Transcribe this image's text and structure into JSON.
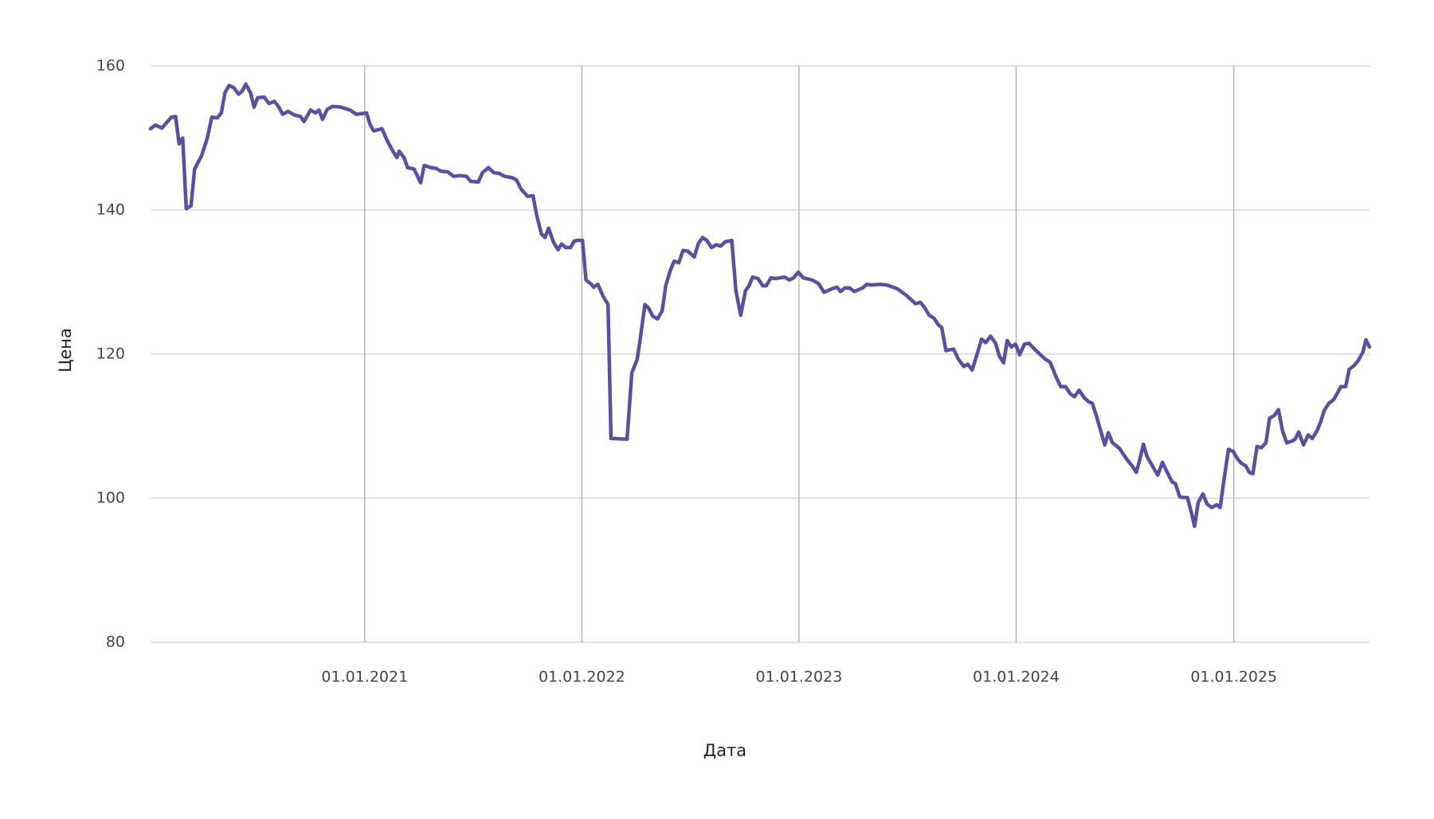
{
  "chart_data": {
    "type": "line",
    "x_label": "Дата",
    "y_label": "Цена",
    "color": "#5e4ea0",
    "xlim": [
      "2020-01-07",
      "2025-08-17"
    ],
    "xticks": [
      {
        "value": "2021-01-01",
        "label": "01.01.2021"
      },
      {
        "value": "2022-01-01",
        "label": "01.01.2022"
      },
      {
        "value": "2023-01-01",
        "label": "01.01.2023"
      },
      {
        "value": "2024-01-01",
        "label": "01.01.2024"
      },
      {
        "value": "2025-01-01",
        "label": "01.01.2025"
      }
    ],
    "ylim": [
      80,
      160
    ],
    "yticks": [
      80,
      100,
      120,
      140,
      160
    ],
    "grid": true,
    "x": [
      "2020-01-07",
      "2020-01-15",
      "2020-01-26",
      "2020-02-11",
      "2020-02-18",
      "2020-02-24",
      "2020-03-01",
      "2020-03-07",
      "2020-03-15",
      "2020-03-21",
      "2020-04-02",
      "2020-04-11",
      "2020-04-19",
      "2020-04-28",
      "2020-05-05",
      "2020-05-11",
      "2020-05-18",
      "2020-05-26",
      "2020-06-03",
      "2020-06-09",
      "2020-06-15",
      "2020-06-23",
      "2020-06-29",
      "2020-07-05",
      "2020-07-16",
      "2020-07-24",
      "2020-08-02",
      "2020-08-09",
      "2020-08-16",
      "2020-08-25",
      "2020-09-05",
      "2020-09-15",
      "2020-09-21",
      "2020-10-02",
      "2020-10-10",
      "2020-10-16",
      "2020-10-22",
      "2020-10-30",
      "2020-11-08",
      "2020-11-22",
      "2020-12-07",
      "2020-12-18",
      "2020-12-27",
      "2021-01-04",
      "2021-01-10",
      "2021-01-16",
      "2021-01-30",
      "2021-02-08",
      "2021-02-18",
      "2021-02-24",
      "2021-02-28",
      "2021-03-08",
      "2021-03-14",
      "2021-03-25",
      "2021-04-05",
      "2021-04-11",
      "2021-04-22",
      "2021-05-01",
      "2021-05-09",
      "2021-05-21",
      "2021-05-30",
      "2021-06-10",
      "2021-06-21",
      "2021-06-28",
      "2021-07-11",
      "2021-07-18",
      "2021-07-28",
      "2021-08-06",
      "2021-08-15",
      "2021-08-24",
      "2021-09-06",
      "2021-09-13",
      "2021-09-21",
      "2021-10-02",
      "2021-10-11",
      "2021-10-17",
      "2021-10-25",
      "2021-10-31",
      "2021-11-06",
      "2021-11-14",
      "2021-11-22",
      "2021-11-28",
      "2021-12-05",
      "2021-12-13",
      "2021-12-19",
      "2021-12-24",
      "2022-01-02",
      "2022-01-08",
      "2022-01-17",
      "2022-01-21",
      "2022-01-28",
      "2022-02-06",
      "2022-02-14",
      "2022-02-19",
      "2022-03-18",
      "2022-03-26",
      "2022-04-04",
      "2022-04-09",
      "2022-04-17",
      "2022-04-24",
      "2022-04-30",
      "2022-05-08",
      "2022-05-16",
      "2022-05-22",
      "2022-05-30",
      "2022-06-05",
      "2022-06-13",
      "2022-06-20",
      "2022-06-28",
      "2022-07-09",
      "2022-07-16",
      "2022-07-23",
      "2022-07-30",
      "2022-08-07",
      "2022-08-15",
      "2022-08-22",
      "2022-08-30",
      "2022-09-10",
      "2022-09-17",
      "2022-09-25",
      "2022-10-03",
      "2022-10-09",
      "2022-10-15",
      "2022-10-24",
      "2022-11-01",
      "2022-11-07",
      "2022-11-15",
      "2022-11-23",
      "2022-11-30",
      "2022-12-08",
      "2022-12-16",
      "2022-12-23",
      "2022-12-31",
      "2023-01-08",
      "2023-01-23",
      "2023-02-03",
      "2023-02-12",
      "2023-02-26",
      "2023-03-06",
      "2023-03-12",
      "2023-03-19",
      "2023-03-27",
      "2023-04-04",
      "2023-04-18",
      "2023-04-25",
      "2023-05-03",
      "2023-05-17",
      "2023-05-29",
      "2023-06-15",
      "2023-06-30",
      "2023-07-16",
      "2023-07-24",
      "2023-07-31",
      "2023-08-08",
      "2023-08-16",
      "2023-08-23",
      "2023-08-29",
      "2023-09-05",
      "2023-09-11",
      "2023-09-18",
      "2023-09-26",
      "2023-10-05",
      "2023-10-12",
      "2023-10-19",
      "2023-10-27",
      "2023-11-04",
      "2023-11-11",
      "2023-11-19",
      "2023-11-27",
      "2023-12-04",
      "2023-12-11",
      "2023-12-17",
      "2023-12-24",
      "2023-12-31",
      "2024-01-07",
      "2024-01-15",
      "2024-01-23",
      "2024-02-01",
      "2024-02-10",
      "2024-02-19",
      "2024-02-27",
      "2024-03-09",
      "2024-03-16",
      "2024-03-24",
      "2024-04-01",
      "2024-04-08",
      "2024-04-16",
      "2024-04-24",
      "2024-05-02",
      "2024-05-08",
      "2024-05-14",
      "2024-05-22",
      "2024-05-29",
      "2024-06-04",
      "2024-06-11",
      "2024-06-23",
      "2024-07-01",
      "2024-07-08",
      "2024-07-14",
      "2024-07-21",
      "2024-07-27",
      "2024-08-02",
      "2024-08-08",
      "2024-08-17",
      "2024-08-26",
      "2024-09-03",
      "2024-09-11",
      "2024-09-19",
      "2024-09-25",
      "2024-10-02",
      "2024-10-08",
      "2024-10-15",
      "2024-10-21",
      "2024-10-27",
      "2024-11-02",
      "2024-11-10",
      "2024-11-17",
      "2024-11-25",
      "2024-12-03",
      "2024-12-09",
      "2024-12-15",
      "2024-12-23",
      "2024-12-31",
      "2025-01-07",
      "2025-01-13",
      "2025-01-21",
      "2025-01-27",
      "2025-02-02",
      "2025-02-09",
      "2025-02-16",
      "2025-02-24",
      "2025-03-02",
      "2025-03-10",
      "2025-03-17",
      "2025-03-24",
      "2025-03-31",
      "2025-04-08",
      "2025-04-14",
      "2025-04-20",
      "2025-04-28",
      "2025-05-06",
      "2025-05-13",
      "2025-05-21",
      "2025-05-27",
      "2025-06-02",
      "2025-06-10",
      "2025-06-18",
      "2025-06-24",
      "2025-06-30",
      "2025-07-08",
      "2025-07-14",
      "2025-07-22",
      "2025-07-29",
      "2025-08-06",
      "2025-08-11",
      "2025-08-17"
    ],
    "values": [
      151.3,
      151.8,
      151.4,
      152.9,
      153.0,
      149.2,
      150.0,
      140.2,
      140.6,
      145.7,
      147.6,
      149.9,
      152.9,
      152.8,
      153.5,
      156.3,
      157.3,
      157.0,
      156.1,
      156.5,
      157.5,
      156.3,
      154.3,
      155.6,
      155.7,
      154.8,
      155.1,
      154.4,
      153.3,
      153.7,
      153.2,
      153.0,
      152.3,
      153.9,
      153.5,
      153.9,
      152.6,
      154.0,
      154.4,
      154.3,
      153.9,
      153.3,
      153.4,
      153.5,
      151.9,
      151.0,
      151.3,
      149.6,
      148.1,
      147.3,
      148.2,
      147.3,
      145.9,
      145.7,
      143.8,
      146.2,
      145.9,
      145.8,
      145.4,
      145.3,
      144.7,
      144.8,
      144.7,
      144.0,
      143.9,
      145.2,
      145.9,
      145.2,
      145.1,
      144.7,
      144.5,
      144.2,
      142.9,
      141.9,
      142.0,
      139.3,
      136.7,
      136.2,
      137.5,
      135.6,
      134.5,
      135.3,
      134.8,
      134.8,
      135.7,
      135.8,
      135.8,
      130.3,
      129.7,
      129.3,
      129.7,
      128.0,
      126.9,
      108.3,
      108.2,
      117.4,
      119.3,
      122.0,
      126.9,
      126.3,
      125.3,
      124.9,
      126.0,
      129.5,
      131.7,
      132.9,
      132.7,
      134.4,
      134.3,
      133.5,
      135.4,
      136.2,
      135.8,
      134.8,
      135.2,
      135.0,
      135.6,
      135.8,
      128.8,
      125.4,
      128.8,
      129.5,
      130.7,
      130.5,
      129.5,
      129.5,
      130.6,
      130.5,
      130.6,
      130.7,
      130.3,
      130.6,
      131.4,
      130.6,
      130.3,
      129.8,
      128.6,
      129.1,
      129.3,
      128.7,
      129.2,
      129.2,
      128.7,
      129.2,
      129.7,
      129.6,
      129.7,
      129.6,
      129.1,
      128.2,
      127.0,
      127.2,
      126.5,
      125.4,
      125.0,
      124.1,
      123.7,
      120.5,
      120.6,
      120.7,
      119.3,
      118.3,
      118.6,
      117.8,
      119.9,
      122.1,
      121.6,
      122.5,
      121.6,
      119.7,
      118.8,
      121.9,
      121.0,
      121.4,
      119.9,
      121.4,
      121.5,
      120.7,
      120.0,
      119.3,
      118.9,
      116.7,
      115.5,
      115.5,
      114.5,
      114.1,
      115.0,
      114.0,
      113.4,
      113.2,
      111.7,
      109.4,
      107.4,
      109.1,
      107.7,
      106.9,
      105.9,
      105.1,
      104.5,
      103.6,
      105.4,
      107.5,
      105.8,
      104.5,
      103.2,
      105.0,
      103.6,
      102.3,
      102.0,
      100.2,
      100.1,
      100.1,
      98.2,
      96.1,
      99.4,
      100.6,
      99.2,
      98.7,
      99.1,
      98.7,
      102.3,
      106.8,
      106.5,
      105.5,
      104.9,
      104.5,
      103.6,
      103.4,
      107.2,
      107.0,
      107.7,
      111.1,
      111.5,
      112.3,
      109.3,
      107.7,
      107.9,
      108.2,
      109.2,
      107.4,
      108.8,
      108.3,
      109.4,
      110.6,
      112.2,
      113.2,
      113.7,
      114.6,
      115.5,
      115.5,
      117.9,
      118.4,
      119.1,
      120.3,
      122.0,
      121.0
    ]
  }
}
